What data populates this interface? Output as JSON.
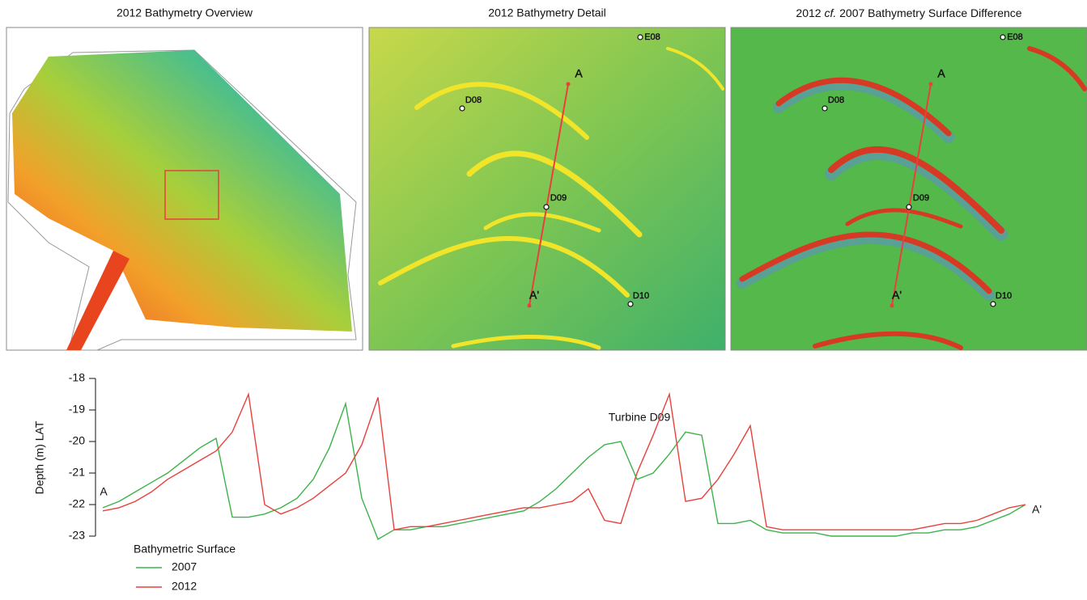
{
  "panels": [
    {
      "title": "2012 Bathymetry Overview"
    },
    {
      "title": "2012 Bathymetry Detail"
    },
    {
      "title_parts": [
        "2012 ",
        "cf.",
        " 2007 Bathymetry Surface Difference"
      ]
    }
  ],
  "detail_markers": [
    "A",
    "A'",
    "D08",
    "D09",
    "D10",
    "E08"
  ],
  "chart_data": {
    "type": "line",
    "y_label": "Depth (m) LAT",
    "ylim": [
      -23,
      -18
    ],
    "yticks": [
      -18,
      -19,
      -20,
      -21,
      -22,
      -23
    ],
    "annotations": [
      "Turbine D09",
      "A",
      "A'"
    ],
    "legend_title": "Bathymetric Surface",
    "series": [
      {
        "name": "2007",
        "color": "#3cb34a",
        "values": [
          -22.1,
          -21.9,
          -21.6,
          -21.3,
          -21.0,
          -20.6,
          -20.2,
          -19.9,
          -22.4,
          -22.4,
          -22.3,
          -22.1,
          -21.8,
          -21.2,
          -20.2,
          -18.8,
          -21.8,
          -23.1,
          -22.8,
          -22.8,
          -22.7,
          -22.7,
          -22.6,
          -22.5,
          -22.4,
          -22.3,
          -22.2,
          -21.9,
          -21.5,
          -21.0,
          -20.5,
          -20.1,
          -20.0,
          -21.2,
          -21.0,
          -20.4,
          -19.7,
          -19.8,
          -22.6,
          -22.6,
          -22.5,
          -22.8,
          -22.9,
          -22.9,
          -22.9,
          -23.0,
          -23.0,
          -23.0,
          -23.0,
          -23.0,
          -22.9,
          -22.9,
          -22.8,
          -22.8,
          -22.7,
          -22.5,
          -22.3,
          -22.0
        ]
      },
      {
        "name": "2012",
        "color": "#e8413c",
        "values": [
          -22.2,
          -22.1,
          -21.9,
          -21.6,
          -21.2,
          -20.9,
          -20.6,
          -20.3,
          -19.7,
          -18.5,
          -22.0,
          -22.3,
          -22.1,
          -21.8,
          -21.4,
          -21.0,
          -20.1,
          -18.6,
          -22.8,
          -22.7,
          -22.7,
          -22.6,
          -22.5,
          -22.4,
          -22.3,
          -22.2,
          -22.1,
          -22.1,
          -22.0,
          -21.9,
          -21.5,
          -22.5,
          -22.6,
          -21.0,
          -19.8,
          -18.5,
          -21.9,
          -21.8,
          -21.2,
          -20.4,
          -19.5,
          -22.7,
          -22.8,
          -22.8,
          -22.8,
          -22.8,
          -22.8,
          -22.8,
          -22.8,
          -22.8,
          -22.8,
          -22.7,
          -22.6,
          -22.6,
          -22.5,
          -22.3,
          -22.1,
          -22.0
        ]
      }
    ]
  }
}
